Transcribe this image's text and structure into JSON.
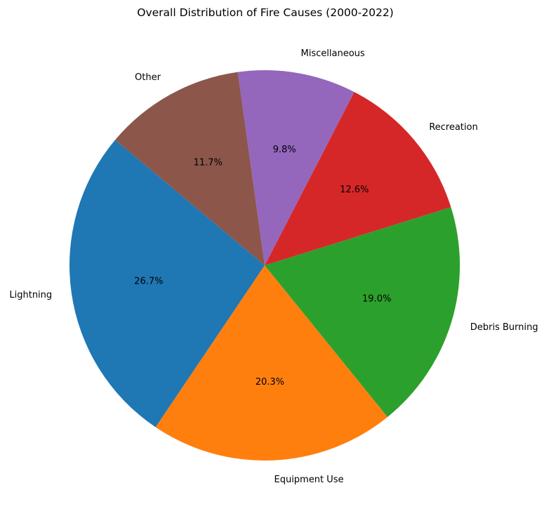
{
  "chart_data": {
    "type": "pie",
    "title": "Overall Distribution of Fire Causes (2000-2022)",
    "start_angle_deg": 140,
    "direction": "counterclockwise",
    "slices": [
      {
        "label": "Lightning",
        "value": 26.7,
        "pct_text": "26.7%",
        "color": "#1f77b4"
      },
      {
        "label": "Equipment Use",
        "value": 20.3,
        "pct_text": "20.3%",
        "color": "#ff7f0e"
      },
      {
        "label": "Debris Burning",
        "value": 19.0,
        "pct_text": "19.0%",
        "color": "#2ca02c"
      },
      {
        "label": "Recreation",
        "value": 12.6,
        "pct_text": "12.6%",
        "color": "#d62728"
      },
      {
        "label": "Miscellaneous",
        "value": 9.8,
        "pct_text": "9.8%",
        "color": "#9467bd"
      },
      {
        "label": "Other",
        "value": 11.7,
        "pct_text": "11.7%",
        "color": "#8c564b"
      }
    ]
  }
}
